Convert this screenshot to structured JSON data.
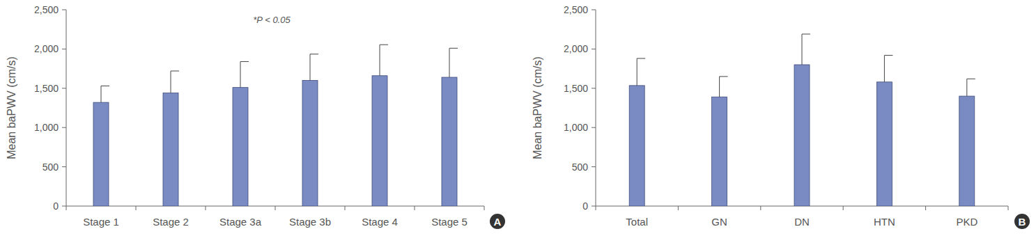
{
  "chart_data": [
    {
      "type": "bar",
      "panel_label": "A",
      "y_label": "Mean baPWV (cm/s)",
      "annotations": [
        "*P < 0.05"
      ],
      "categories": [
        "Stage 1",
        "Stage 2",
        "Stage 3a",
        "Stage 3b",
        "Stage 4",
        "Stage 5"
      ],
      "values": [
        1320,
        1440,
        1510,
        1600,
        1660,
        1640
      ],
      "errors": [
        210,
        280,
        330,
        335,
        395,
        370
      ],
      "color": "#7a8bc4",
      "ylim": [
        0,
        2500
      ],
      "yticks": [
        0,
        500,
        {
          "value": 1000,
          "label": "1,000"
        },
        {
          "value": 1500,
          "label": "1,500"
        },
        {
          "value": 2000,
          "label": "2,000"
        },
        {
          "value": 2500,
          "label": "2,500"
        }
      ],
      "grid": false
    },
    {
      "type": "bar",
      "panel_label": "B",
      "y_label": "Mean baPWV (cm/s)",
      "categories": [
        "Total",
        "GN",
        "DN",
        "HTN",
        "PKD"
      ],
      "values": [
        1535,
        1390,
        1800,
        1580,
        1400
      ],
      "errors": [
        345,
        260,
        390,
        340,
        220
      ],
      "color": "#7a8bc4",
      "ylim": [
        0,
        2500
      ],
      "yticks": [
        0,
        500,
        {
          "value": 1000,
          "label": "1,000"
        },
        {
          "value": 1500,
          "label": "1,500"
        },
        {
          "value": 2000,
          "label": "2,000"
        },
        {
          "value": 2500,
          "label": "2,500"
        }
      ],
      "grid": false
    }
  ]
}
